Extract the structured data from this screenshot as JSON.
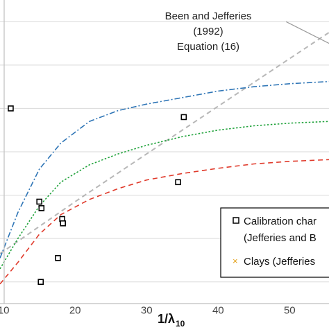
{
  "chart_data": {
    "type": "scatter",
    "xlabel": "1/λ",
    "xlabel_subscript": "10",
    "xlim": [
      9.5,
      55.5
    ],
    "ylim": [
      0.5,
      7.5
    ],
    "x_ticks": [
      10,
      20,
      30,
      40,
      50
    ],
    "x_tick_labels": [
      "10",
      "20",
      "30",
      "40",
      "50"
    ],
    "y_gridlines": [
      1,
      2,
      3,
      4,
      5,
      6,
      7
    ],
    "grid": "horizontal",
    "annotation": {
      "lines": [
        "Been and Jefferies",
        "(1992)",
        "Equation (16)"
      ],
      "arrow_from": [
        49.5,
        7.0
      ],
      "arrow_to": [
        55.5,
        6.5
      ]
    },
    "legend": {
      "position": "bottom-right",
      "items": [
        {
          "symbol": "square",
          "text": "Calibration char",
          "text2": "(Jefferies and B"
        },
        {
          "symbol": "x",
          "text": "Clays (Jefferies"
        }
      ]
    },
    "series": [
      {
        "name": "Calibration char (Jefferies and B",
        "marker": "square",
        "color": "#000000",
        "points": [
          {
            "x": 11.0,
            "y": 5.0
          },
          {
            "x": 15.0,
            "y": 2.85
          },
          {
            "x": 15.3,
            "y": 2.7
          },
          {
            "x": 18.2,
            "y": 2.45
          },
          {
            "x": 18.3,
            "y": 2.35
          },
          {
            "x": 17.6,
            "y": 1.55
          },
          {
            "x": 15.2,
            "y": 1.0
          },
          {
            "x": 35.2,
            "y": 4.8
          },
          {
            "x": 34.4,
            "y": 3.3
          }
        ]
      },
      {
        "style": "dashed",
        "color": "#b7b7b7",
        "points": [
          {
            "x": 9.5,
            "y": 1.65
          },
          {
            "x": 20.0,
            "y": 2.85
          },
          {
            "x": 30.0,
            "y": 3.95
          },
          {
            "x": 40.0,
            "y": 5.05
          },
          {
            "x": 50.0,
            "y": 6.15
          },
          {
            "x": 55.5,
            "y": 6.75
          }
        ]
      },
      {
        "style": "dash-dot",
        "color": "#2e75b6",
        "points": [
          {
            "x": 9.5,
            "y": 1.55
          },
          {
            "x": 12.0,
            "y": 2.6
          },
          {
            "x": 15.0,
            "y": 3.6
          },
          {
            "x": 18.0,
            "y": 4.2
          },
          {
            "x": 22.0,
            "y": 4.7
          },
          {
            "x": 26.0,
            "y": 4.95
          },
          {
            "x": 30.0,
            "y": 5.1
          },
          {
            "x": 35.0,
            "y": 5.25
          },
          {
            "x": 40.0,
            "y": 5.4
          },
          {
            "x": 45.0,
            "y": 5.5
          },
          {
            "x": 50.0,
            "y": 5.57
          },
          {
            "x": 55.5,
            "y": 5.62
          }
        ]
      },
      {
        "style": "dotted",
        "color": "#1fa23a",
        "points": [
          {
            "x": 9.5,
            "y": 1.3
          },
          {
            "x": 12.0,
            "y": 2.0
          },
          {
            "x": 15.0,
            "y": 2.75
          },
          {
            "x": 18.0,
            "y": 3.3
          },
          {
            "x": 22.0,
            "y": 3.7
          },
          {
            "x": 26.0,
            "y": 3.95
          },
          {
            "x": 30.0,
            "y": 4.15
          },
          {
            "x": 35.0,
            "y": 4.35
          },
          {
            "x": 40.0,
            "y": 4.5
          },
          {
            "x": 45.0,
            "y": 4.6
          },
          {
            "x": 50.0,
            "y": 4.66
          },
          {
            "x": 55.5,
            "y": 4.7
          }
        ]
      },
      {
        "style": "dashed",
        "color": "#e03a2b",
        "points": [
          {
            "x": 9.5,
            "y": 0.95
          },
          {
            "x": 12.0,
            "y": 1.45
          },
          {
            "x": 15.0,
            "y": 2.1
          },
          {
            "x": 18.0,
            "y": 2.55
          },
          {
            "x": 22.0,
            "y": 2.9
          },
          {
            "x": 26.0,
            "y": 3.15
          },
          {
            "x": 30.0,
            "y": 3.35
          },
          {
            "x": 35.0,
            "y": 3.5
          },
          {
            "x": 40.0,
            "y": 3.62
          },
          {
            "x": 45.0,
            "y": 3.72
          },
          {
            "x": 50.0,
            "y": 3.78
          },
          {
            "x": 55.5,
            "y": 3.82
          }
        ]
      }
    ]
  }
}
